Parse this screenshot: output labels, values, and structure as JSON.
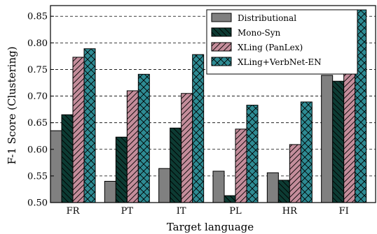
{
  "chart_data": {
    "type": "bar",
    "xlabel": "Target language",
    "ylabel": "F-1 Score (Clustering)",
    "categories": [
      "FR",
      "PT",
      "IT",
      "PL",
      "HR",
      "FI"
    ],
    "ylim": [
      0.5,
      0.87
    ],
    "yticks": [
      "0.50",
      "0.55",
      "0.60",
      "0.65",
      "0.70",
      "0.75",
      "0.80",
      "0.85"
    ],
    "grid": "horizontal dashed",
    "legend_position": "top-right",
    "series": [
      {
        "name": "Distributional",
        "color": "#808080",
        "pattern": "none",
        "values": [
          0.635,
          0.54,
          0.564,
          0.559,
          0.556,
          0.739
        ]
      },
      {
        "name": "Mono-Syn",
        "color": "#0d3b33",
        "pattern": "diagonal-backslash",
        "values": [
          0.665,
          0.623,
          0.64,
          0.513,
          0.542,
          0.728
        ]
      },
      {
        "name": "XLing (PanLex)",
        "color": "#c48d9b",
        "pattern": "diagonal-slash",
        "values": [
          0.773,
          0.71,
          0.705,
          0.638,
          0.609,
          0.8
        ]
      },
      {
        "name": "XLing+VerbNet-EN",
        "color": "#2e8b93",
        "pattern": "cross-hatch",
        "values": [
          0.789,
          0.741,
          0.778,
          0.683,
          0.689,
          0.862
        ]
      }
    ]
  }
}
